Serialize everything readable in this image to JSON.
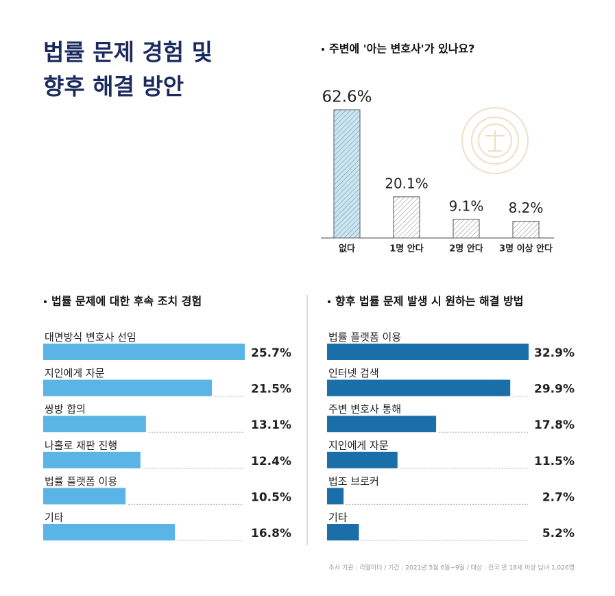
{
  "title": [
    "법률 문제 경험 및",
    "향후 해결 방안"
  ],
  "chart_data": [
    {
      "type": "bar",
      "title": "주변에 '아는 변호사'가 있나요?",
      "categories": [
        "없다",
        "1명 안다",
        "2명 안다",
        "3명 이상 안다"
      ],
      "values": [
        62.6,
        20.1,
        9.1,
        8.2
      ],
      "value_labels": [
        "62.6%",
        "20.1%",
        "9.1%",
        "8.2%"
      ],
      "colors": [
        "#c9e6f5",
        "#ffffff",
        "#ffffff",
        "#ffffff"
      ]
    },
    {
      "type": "barh",
      "title": "법률 문제에 대한 후속 조치 경험",
      "categories": [
        "대면방식 변호사 선임",
        "지인에게 자문",
        "쌍방 합의",
        "나홀로 재판 진행",
        "법률 플랫폼 이용",
        "기타"
      ],
      "values": [
        25.7,
        21.5,
        13.1,
        12.4,
        10.5,
        16.8
      ],
      "value_labels": [
        "25.7%",
        "21.5%",
        "13.1%",
        "12.4%",
        "10.5%",
        "16.8%"
      ],
      "color": "#5ab4e5"
    },
    {
      "type": "barh",
      "title": "향후 법률 문제 발생 시 원하는 해결 방법",
      "categories": [
        "법률 플랫폼 이용",
        "인터넷 검색",
        "주변 변호사 통해",
        "지인에게 자문",
        "법조 브로커",
        "기타"
      ],
      "values": [
        32.9,
        29.9,
        17.8,
        11.5,
        2.7,
        5.2
      ],
      "value_labels": [
        "32.9%",
        "29.9%",
        "17.8%",
        "11.5%",
        "2.7%",
        "5.2%"
      ],
      "color": "#1a6fa8"
    }
  ],
  "source": "조사 기관 : 리얼미터 / 기간 : 2021년 5월 6일~9일 / 대상 : 전국 만 18세 이상 남녀 1,026명"
}
